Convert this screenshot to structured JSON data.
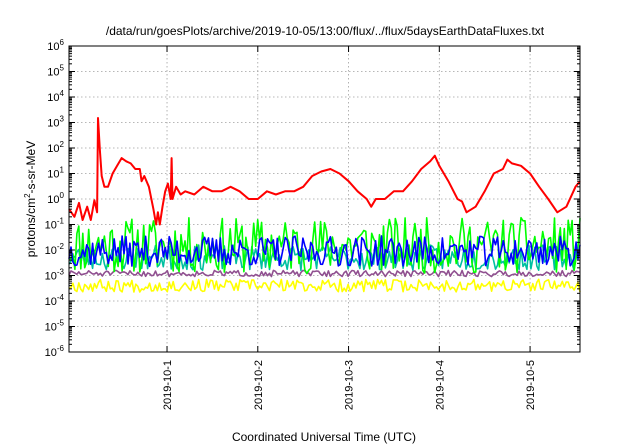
{
  "chart_data": {
    "type": "line",
    "title": "/data/run/goesPlots/archive/2019-10-05/13:00/flux/../flux/5daysEarthDataFluxes.txt",
    "xlabel": "Coordinated Universal Time (UTC)",
    "ylabel_parts": [
      "protons/cm",
      "2",
      "-s-sr-MeV"
    ],
    "yscale": "log",
    "ylim_exp": [
      -6,
      6
    ],
    "y_tick_labels": [
      {
        "base": "10",
        "exp": "-6"
      },
      {
        "base": "10",
        "exp": "-5"
      },
      {
        "base": "10",
        "exp": "-4"
      },
      {
        "base": "10",
        "exp": "-3"
      },
      {
        "base": "10",
        "exp": "-2"
      },
      {
        "base": "10",
        "exp": "-1"
      },
      {
        "base": "10",
        "exp": "0"
      },
      {
        "base": "10",
        "exp": "1"
      },
      {
        "base": "10",
        "exp": "2"
      },
      {
        "base": "10",
        "exp": "3"
      },
      {
        "base": "10",
        "exp": "4"
      },
      {
        "base": "10",
        "exp": "5"
      },
      {
        "base": "10",
        "exp": "6"
      }
    ],
    "x_range_days": [
      -1.08,
      4.55
    ],
    "x_ticks": [
      {
        "pos": 0,
        "label": "2019-10-1"
      },
      {
        "pos": 1,
        "label": "2019-10-2"
      },
      {
        "pos": 2,
        "label": "2019-10-3"
      },
      {
        "pos": 3,
        "label": "2019-10-4"
      },
      {
        "pos": 4,
        "label": "2019-10-5"
      }
    ],
    "grid": true,
    "series": [
      {
        "color": "#ff0000",
        "points": [
          [
            -1.08,
            0.4
          ],
          [
            -1.02,
            0.2
          ],
          [
            -0.97,
            0.7
          ],
          [
            -0.93,
            0.15
          ],
          [
            -0.88,
            0.5
          ],
          [
            -0.84,
            0.15
          ],
          [
            -0.8,
            0.9
          ],
          [
            -0.77,
            0.3
          ],
          [
            -0.76,
            1500
          ],
          [
            -0.74,
            80
          ],
          [
            -0.72,
            8
          ],
          [
            -0.69,
            3
          ],
          [
            -0.65,
            3
          ],
          [
            -0.6,
            10
          ],
          [
            -0.55,
            20
          ],
          [
            -0.5,
            40
          ],
          [
            -0.45,
            30
          ],
          [
            -0.4,
            25
          ],
          [
            -0.35,
            15
          ],
          [
            -0.3,
            15
          ],
          [
            -0.28,
            5
          ],
          [
            -0.25,
            8
          ],
          [
            -0.2,
            3
          ],
          [
            -0.15,
            0.4
          ],
          [
            -0.12,
            0.1
          ],
          [
            -0.1,
            0.3
          ],
          [
            -0.08,
            0.1
          ],
          [
            -0.05,
            0.5
          ],
          [
            -0.02,
            2
          ],
          [
            0.01,
            4
          ],
          [
            0.04,
            1
          ],
          [
            0.05,
            40
          ],
          [
            0.06,
            1
          ],
          [
            0.1,
            3
          ],
          [
            0.15,
            1.5
          ],
          [
            0.2,
            2
          ],
          [
            0.3,
            1.5
          ],
          [
            0.4,
            3
          ],
          [
            0.5,
            2
          ],
          [
            0.6,
            2
          ],
          [
            0.7,
            3
          ],
          [
            0.8,
            2
          ],
          [
            0.9,
            1
          ],
          [
            1.0,
            1
          ],
          [
            1.1,
            2
          ],
          [
            1.2,
            1.5
          ],
          [
            1.3,
            2
          ],
          [
            1.4,
            2
          ],
          [
            1.5,
            3
          ],
          [
            1.6,
            8
          ],
          [
            1.7,
            12
          ],
          [
            1.8,
            15
          ],
          [
            1.9,
            10
          ],
          [
            2.0,
            5
          ],
          [
            2.1,
            2
          ],
          [
            2.2,
            1
          ],
          [
            2.25,
            0.5
          ],
          [
            2.3,
            1
          ],
          [
            2.4,
            1
          ],
          [
            2.5,
            2
          ],
          [
            2.6,
            2
          ],
          [
            2.7,
            5
          ],
          [
            2.8,
            15
          ],
          [
            2.9,
            30
          ],
          [
            2.95,
            50
          ],
          [
            3.0,
            20
          ],
          [
            3.1,
            5
          ],
          [
            3.2,
            1
          ],
          [
            3.25,
            0.8
          ],
          [
            3.3,
            0.3
          ],
          [
            3.4,
            0.5
          ],
          [
            3.5,
            2
          ],
          [
            3.6,
            10
          ],
          [
            3.7,
            15
          ],
          [
            3.75,
            35
          ],
          [
            3.8,
            25
          ],
          [
            3.9,
            20
          ],
          [
            4.0,
            10
          ],
          [
            4.1,
            3
          ],
          [
            4.2,
            1
          ],
          [
            4.3,
            0.3
          ],
          [
            4.4,
            0.5
          ],
          [
            4.5,
            3
          ],
          [
            4.55,
            5
          ]
        ]
      },
      {
        "color": "#00ff00",
        "center": 0.015,
        "spread": 1.1,
        "seed": 11
      },
      {
        "color": "#00c0a0",
        "center": 0.005,
        "spread": 0.5,
        "seed": 23
      },
      {
        "color": "#0000ff",
        "center": 0.009,
        "spread": 0.6,
        "seed": 37
      },
      {
        "color": "#905090",
        "center": 0.0012,
        "spread": 0.12,
        "seed": 51
      },
      {
        "color": "#ffff00",
        "center": 0.0004,
        "spread": 0.25,
        "seed": 67
      }
    ]
  }
}
